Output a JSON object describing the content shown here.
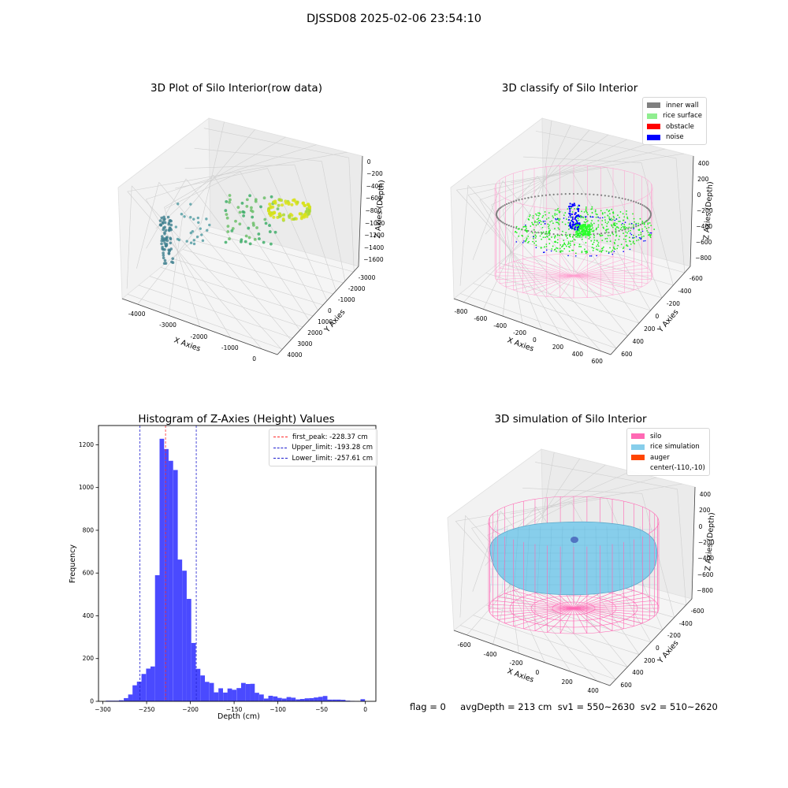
{
  "suptitle": "DJSSD08 2025-02-06 23:54:10",
  "colors": {
    "hist_bar": "#4a4aff",
    "peak_line": "#ff2a2a",
    "limit_line": "#1f1fcf",
    "inner_wall": "#808080",
    "rice_surface": "#90ee90",
    "obstacle": "#ff0000",
    "noise": "#0000ff",
    "silo": "#ff69b4",
    "rice_simulation": "#87ceeb",
    "auger": "#ff4500"
  },
  "panel1": {
    "title": "3D Plot of Silo Interior(row data)",
    "xlabel": "X Axies",
    "ylabel": "Y Axies",
    "zlabel": "Z Axies (Depth)",
    "xticks": [
      "-4000",
      "-3000",
      "-2000",
      "-1000",
      "0"
    ],
    "yticks": [
      "-3000",
      "-2000",
      "-1000",
      "0",
      "1000",
      "2000",
      "3000",
      "4000"
    ],
    "zticks": [
      "0",
      "−200",
      "−400",
      "−600",
      "−800",
      "−1000",
      "−1200",
      "−1400",
      "−1600"
    ]
  },
  "panel2": {
    "title": "3D classify of Silo Interior",
    "xlabel": "X Axies",
    "ylabel": "Y Axies",
    "zlabel": "Z Axies (Depth)",
    "xticks": [
      "-800",
      "-600",
      "-400",
      "-200",
      "0",
      "200",
      "400",
      "600"
    ],
    "yticks": [
      "-600",
      "-400",
      "-200",
      "0",
      "200",
      "400",
      "600"
    ],
    "zticks": [
      "400",
      "200",
      "0",
      "−200",
      "−400",
      "−600",
      "−800"
    ],
    "legend": [
      "inner wall",
      "rice surface",
      "obstacle",
      "noise"
    ]
  },
  "panel4": {
    "title": "3D simulation of Silo Interior",
    "xlabel": "X Axies",
    "ylabel": "Y Axies",
    "zlabel": "Z Axies (Depth)",
    "xticks": [
      "-600",
      "-400",
      "-200",
      "0",
      "200",
      "400"
    ],
    "yticks": [
      "-600",
      "-400",
      "-200",
      "0",
      "200",
      "400",
      "600"
    ],
    "zticks": [
      "400",
      "200",
      "0",
      "−200",
      "−400",
      "−600",
      "−800"
    ],
    "legend": [
      "silo",
      "rice simulation",
      "auger",
      "center(-110,-10)"
    ]
  },
  "chart_data": [
    {
      "type": "bar",
      "title": "Histogram of Z-Axies (Height) Values",
      "xlabel": "Depth (cm)",
      "ylabel": "Frequency",
      "xlim": [
        -305,
        12
      ],
      "ylim": [
        0,
        1290
      ],
      "xticks": [
        -300,
        -250,
        -200,
        -150,
        -100,
        -50,
        0
      ],
      "yticks": [
        0,
        200,
        400,
        600,
        800,
        1000,
        1200
      ],
      "bin_width": 5.2,
      "bins": [
        {
          "x": -294,
          "v": 3
        },
        {
          "x": -289,
          "v": 3
        },
        {
          "x": -284,
          "v": 3
        },
        {
          "x": -279,
          "v": 5
        },
        {
          "x": -273.5,
          "v": 15
        },
        {
          "x": -268.5,
          "v": 32
        },
        {
          "x": -263.5,
          "v": 75
        },
        {
          "x": -258.5,
          "v": 92
        },
        {
          "x": -253.3,
          "v": 128
        },
        {
          "x": -248,
          "v": 153
        },
        {
          "x": -243,
          "v": 163
        },
        {
          "x": -237.8,
          "v": 590
        },
        {
          "x": -232.6,
          "v": 1228
        },
        {
          "x": -227.5,
          "v": 1180
        },
        {
          "x": -222.3,
          "v": 1125
        },
        {
          "x": -217,
          "v": 1082
        },
        {
          "x": -212,
          "v": 663
        },
        {
          "x": -206.8,
          "v": 611
        },
        {
          "x": -201.6,
          "v": 479
        },
        {
          "x": -196.4,
          "v": 273
        },
        {
          "x": -191.2,
          "v": 152
        },
        {
          "x": -186,
          "v": 121
        },
        {
          "x": -181,
          "v": 91
        },
        {
          "x": -175.7,
          "v": 86
        },
        {
          "x": -170.5,
          "v": 42
        },
        {
          "x": -165.3,
          "v": 61
        },
        {
          "x": -160,
          "v": 41
        },
        {
          "x": -155,
          "v": 60
        },
        {
          "x": -150,
          "v": 54
        },
        {
          "x": -144.6,
          "v": 62
        },
        {
          "x": -139.4,
          "v": 86
        },
        {
          "x": -134.2,
          "v": 81
        },
        {
          "x": -129,
          "v": 82
        },
        {
          "x": -124,
          "v": 40
        },
        {
          "x": -118.7,
          "v": 32
        },
        {
          "x": -113.5,
          "v": 13
        },
        {
          "x": -108.3,
          "v": 26
        },
        {
          "x": -103,
          "v": 23
        },
        {
          "x": -98,
          "v": 16
        },
        {
          "x": -92.7,
          "v": 13
        },
        {
          "x": -87.5,
          "v": 20
        },
        {
          "x": -82.3,
          "v": 17
        },
        {
          "x": -77,
          "v": 9
        },
        {
          "x": -72,
          "v": 11
        },
        {
          "x": -66.8,
          "v": 14
        },
        {
          "x": -61.6,
          "v": 15
        },
        {
          "x": -56.4,
          "v": 18
        },
        {
          "x": -51.2,
          "v": 21
        },
        {
          "x": -46,
          "v": 25
        },
        {
          "x": -41,
          "v": 8
        },
        {
          "x": -35.7,
          "v": 8
        },
        {
          "x": -30.5,
          "v": 8
        },
        {
          "x": -25.3,
          "v": 7
        },
        {
          "x": -20,
          "v": 3
        },
        {
          "x": -14.9,
          "v": 2
        },
        {
          "x": -9.7,
          "v": 1
        },
        {
          "x": -3,
          "v": 10
        }
      ],
      "lines": [
        {
          "name": "first_peak: -228.37 cm",
          "x": -228.37,
          "color": "#ff2a2a"
        },
        {
          "name": "Upper_limit: -193.28 cm",
          "x": -193.28,
          "color": "#1f1fcf"
        },
        {
          "name": "Lower_limit: -257.61 cm",
          "x": -257.61,
          "color": "#1f1fcf"
        }
      ]
    }
  ],
  "footer": "flag = 0     avgDepth = 213 cm  sv1 = 550~2630  sv2 = 510~2620"
}
